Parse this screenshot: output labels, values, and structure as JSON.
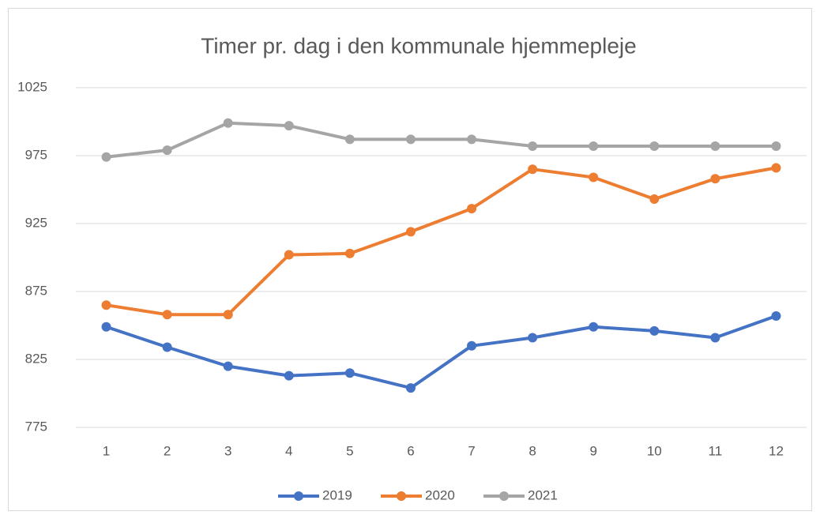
{
  "chart_data": {
    "type": "line",
    "title": "Timer pr. dag i den kommunale hjemmepleje",
    "categories": [
      "1",
      "2",
      "3",
      "4",
      "5",
      "6",
      "7",
      "8",
      "9",
      "10",
      "11",
      "12"
    ],
    "series": [
      {
        "name": "2019",
        "color": "#4472c4",
        "values": [
          849,
          834,
          820,
          813,
          815,
          804,
          835,
          841,
          849,
          846,
          841,
          857
        ]
      },
      {
        "name": "2020",
        "color": "#ed7d31",
        "values": [
          865,
          858,
          858,
          902,
          903,
          919,
          936,
          965,
          959,
          943,
          958,
          966
        ]
      },
      {
        "name": "2021",
        "color": "#a5a5a5",
        "values": [
          974,
          979,
          999,
          997,
          987,
          987,
          987,
          982,
          982,
          982,
          982,
          982
        ]
      }
    ],
    "ylim": [
      775,
      1025
    ],
    "yticks": [
      775,
      825,
      875,
      925,
      975,
      1025
    ],
    "grid": true,
    "legend": "bottom"
  }
}
